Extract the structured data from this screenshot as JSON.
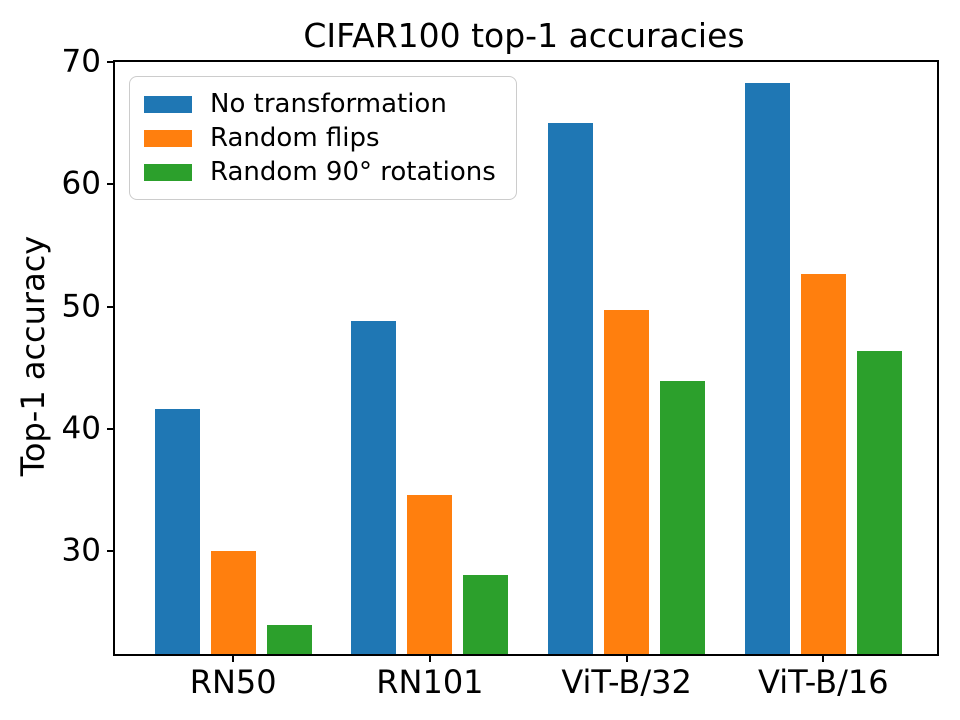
{
  "figure": {
    "title": "CIFAR100 top-1 accuracies",
    "ylabel": "Top-1 accuracy"
  },
  "chart_data": {
    "type": "bar",
    "title": "CIFAR100 top-1 accuracies",
    "xlabel": "",
    "ylabel": "Top-1 accuracy",
    "categories": [
      "RN50",
      "RN101",
      "ViT-B/32",
      "ViT-B/16"
    ],
    "series": [
      {
        "name": "No transformation",
        "color": "#1f77b4",
        "values": [
          41.6,
          48.8,
          65.0,
          68.3
        ]
      },
      {
        "name": "Random flips",
        "color": "#ff7f0e",
        "values": [
          30.0,
          34.6,
          49.7,
          52.7
        ]
      },
      {
        "name": "Random 90° rotations",
        "color": "#2ca02c",
        "values": [
          24.0,
          28.1,
          43.9,
          46.4
        ]
      }
    ],
    "ylim": [
      21.6,
      70
    ],
    "yticks": [
      30,
      40,
      50,
      60,
      70
    ],
    "grid": false,
    "legend_position": "upper left"
  }
}
